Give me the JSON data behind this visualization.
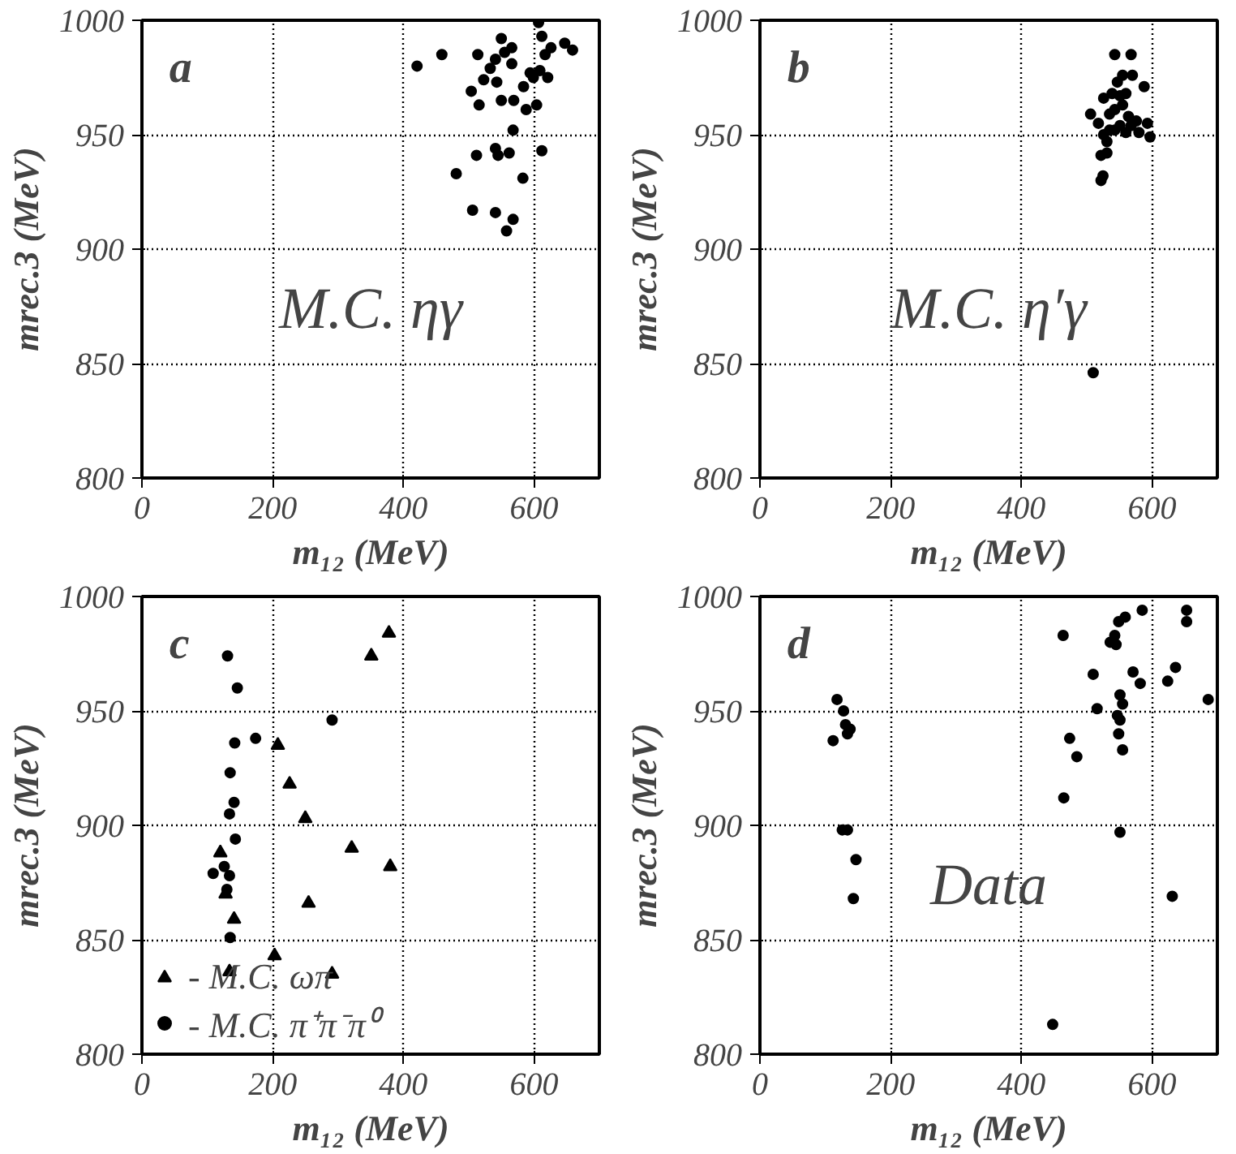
{
  "chart_data": [
    {
      "type": "scatter",
      "title": "a",
      "xlabel": "m₁₂ (MeV)",
      "ylabel": "mrec.3 (MeV)",
      "annotations": [
        "M.C. ηγ"
      ],
      "xlim": [
        0,
        700
      ],
      "ylim": [
        800,
        1000
      ],
      "xticks": [
        0,
        200,
        400,
        600
      ],
      "yticks": [
        800,
        850,
        900,
        950,
        1000
      ],
      "grid": true,
      "legend": false,
      "marker": "circle",
      "series": [
        {
          "color": "#000000",
          "x": [
            421,
            459,
            514,
            504,
            516,
            523,
            533,
            541,
            550,
            555,
            566,
            543,
            566,
            550,
            569,
            584,
            568,
            594,
            588,
            604,
            607,
            612,
            617,
            626,
            647,
            659,
            621,
            609,
            599,
            612,
            541,
            562,
            512,
            545,
            481,
            583,
            506,
            541,
            568,
            558
          ],
          "values": [
            980,
            985,
            985,
            969,
            963,
            974,
            979,
            983,
            992,
            986,
            988,
            973,
            981,
            965,
            965,
            971,
            952,
            977,
            961,
            963,
            999,
            993,
            985,
            988,
            990,
            987,
            975,
            978,
            975,
            943,
            944,
            942,
            941,
            941,
            933,
            931,
            917,
            916,
            913,
            908
          ]
        }
      ]
    },
    {
      "type": "scatter",
      "title": "b",
      "xlabel": "m₁₂ (MeV)",
      "ylabel": "mrec.3 (MeV)",
      "annotations": [
        "M.C. η′γ"
      ],
      "xlim": [
        0,
        700
      ],
      "ylim": [
        800,
        1000
      ],
      "xticks": [
        0,
        200,
        400,
        600
      ],
      "yticks": [
        800,
        850,
        900,
        950,
        1000
      ],
      "grid": true,
      "legend": false,
      "marker": "circle",
      "series": [
        {
          "color": "#000000",
          "x": [
            543,
            568,
            555,
            570,
            588,
            506,
            526,
            539,
            543,
            555,
            564,
            576,
            593,
            597,
            518,
            526,
            535,
            543,
            551,
            560,
            568,
            580,
            531,
            522,
            531,
            525,
            522,
            510,
            547,
            551,
            535,
            560
          ],
          "values": [
            985,
            985,
            976,
            976,
            971,
            959,
            966,
            968,
            961,
            963,
            958,
            956,
            955,
            949,
            955,
            950,
            952,
            952,
            954,
            951,
            954,
            951,
            947,
            941,
            942,
            932,
            930,
            846,
            973,
            967,
            959,
            968
          ]
        }
      ]
    },
    {
      "type": "scatter",
      "title": "c",
      "xlabel": "m₁₂ (MeV)",
      "ylabel": "mrec.3 (MeV)",
      "xlim": [
        0,
        700
      ],
      "ylim": [
        800,
        1000
      ],
      "xticks": [
        0,
        200,
        400,
        600
      ],
      "yticks": [
        800,
        850,
        900,
        950,
        1000
      ],
      "grid": true,
      "legend": "bottom left",
      "series": [
        {
          "name": "- M.C. ωπ",
          "color": "#000000",
          "marker": "triangle",
          "x": [
            120,
            128,
            141,
            134,
            208,
            226,
            250,
            255,
            203,
            291,
            321,
            351,
            378,
            380
          ],
          "values": [
            888,
            870,
            859,
            836,
            935,
            918,
            903,
            866,
            843,
            835,
            890,
            974,
            984,
            882
          ]
        },
        {
          "name": "- M.C. π⁺π⁻π⁰",
          "color": "#000000",
          "marker": "circle",
          "x": [
            131,
            146,
            174,
            142,
            291,
            135,
            141,
            134,
            143,
            109,
            126,
            134,
            130,
            135
          ],
          "values": [
            974,
            960,
            938,
            936,
            946,
            923,
            910,
            905,
            894,
            879,
            882,
            878,
            872,
            851
          ]
        }
      ]
    },
    {
      "type": "scatter",
      "title": "d",
      "xlabel": "m₁₂ (MeV)",
      "ylabel": "mrec.3 (MeV)",
      "annotations": [
        "Data"
      ],
      "xlim": [
        0,
        700
      ],
      "ylim": [
        800,
        1000
      ],
      "xticks": [
        0,
        200,
        400,
        600
      ],
      "yticks": [
        800,
        850,
        900,
        950,
        1000
      ],
      "grid": true,
      "legend": false,
      "marker": "circle",
      "series": [
        {
          "color": "#000000",
          "x": [
            118,
            112,
            128,
            131,
            138,
            134,
            126,
            134,
            147,
            143,
            464,
            474,
            485,
            465,
            448,
            510,
            516,
            536,
            543,
            549,
            559,
            585,
            571,
            582,
            551,
            555,
            547,
            551,
            549,
            555,
            551,
            624,
            636,
            653,
            653,
            631,
            686,
            545
          ],
          "values": [
            955,
            937,
            950,
            944,
            942,
            940,
            898,
            898,
            885,
            868,
            983,
            938,
            930,
            912,
            813,
            966,
            951,
            980,
            983,
            989,
            991,
            994,
            967,
            962,
            957,
            953,
            948,
            946,
            940,
            933,
            897,
            963,
            969,
            994,
            989,
            869,
            955,
            979
          ]
        }
      ]
    }
  ]
}
